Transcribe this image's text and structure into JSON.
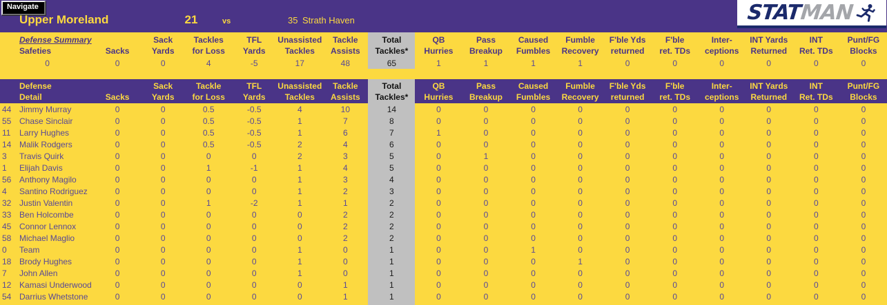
{
  "app": {
    "navigate_label": "Navigate"
  },
  "scoreboard": {
    "home_team": "Upper Moreland",
    "home_score": "21",
    "vs_label": "vs",
    "away_score": "35",
    "away_team": "Strath Haven"
  },
  "logo": {
    "part1": "STAT",
    "part2": "MAN",
    "icon": "runner-icon"
  },
  "colors": {
    "purple": "#4a3487",
    "yellow": "#fcd940",
    "gray_column": "#c0c0c0",
    "data_text": "#584896",
    "logo_navy": "#1b2a6b",
    "logo_silver": "#a4a6aa"
  },
  "summary": {
    "title": "Defense Summary",
    "first_label": "Safeties",
    "first_value": "0",
    "columns": [
      {
        "line1": "",
        "line2": "Sacks",
        "value": "0"
      },
      {
        "line1": "Sack",
        "line2": "Yards",
        "value": "0"
      },
      {
        "line1": "Tackles",
        "line2": "for Loss",
        "value": "4"
      },
      {
        "line1": "TFL",
        "line2": "Yards",
        "value": "-5"
      },
      {
        "line1": "Unassisted",
        "line2": "Tackles",
        "value": "17"
      },
      {
        "line1": "Tackle",
        "line2": "Assists",
        "value": "48"
      },
      {
        "line1": "Total",
        "line2": "Tackles*",
        "value": "65"
      },
      {
        "line1": "QB",
        "line2": "Hurries",
        "value": "1"
      },
      {
        "line1": "Pass",
        "line2": "Breakup",
        "value": "1"
      },
      {
        "line1": "Caused",
        "line2": "Fumbles",
        "value": "1"
      },
      {
        "line1": "Fumble",
        "line2": "Recovery",
        "value": "1"
      },
      {
        "line1": "F'ble Yds",
        "line2": "returned",
        "value": "0"
      },
      {
        "line1": "F'ble",
        "line2": "ret. TDs",
        "value": "0"
      },
      {
        "line1": "Inter-",
        "line2": "ceptions",
        "value": "0"
      },
      {
        "line1": "INT Yards",
        "line2": "Returned",
        "value": "0"
      },
      {
        "line1": "INT",
        "line2": "Ret. TDs",
        "value": "0"
      },
      {
        "line1": "Punt/FG",
        "line2": "Blocks",
        "value": "0"
      }
    ]
  },
  "detail": {
    "header_line1": "Defense",
    "header_line2": "Detail",
    "columns": [
      {
        "line1": "",
        "line2": "Sacks"
      },
      {
        "line1": "Sack",
        "line2": "Yards"
      },
      {
        "line1": "Tackle",
        "line2": "for Loss"
      },
      {
        "line1": "TFL",
        "line2": "Yards"
      },
      {
        "line1": "Unassisted",
        "line2": "Tackles"
      },
      {
        "line1": "Tackle",
        "line2": "Assists"
      },
      {
        "line1": "Total",
        "line2": "Tackles*"
      },
      {
        "line1": "QB",
        "line2": "Hurries"
      },
      {
        "line1": "Pass",
        "line2": "Breakup"
      },
      {
        "line1": "Caused",
        "line2": "Fumbles"
      },
      {
        "line1": "Fumble",
        "line2": "Recovery"
      },
      {
        "line1": "F'ble Yds",
        "line2": "returned"
      },
      {
        "line1": "F'ble",
        "line2": "ret. TDs"
      },
      {
        "line1": "Inter-",
        "line2": "ceptions"
      },
      {
        "line1": "INT Yards",
        "line2": "Returned"
      },
      {
        "line1": "INT",
        "line2": "Ret. TDs"
      },
      {
        "line1": "Punt/FG",
        "line2": "Blocks"
      }
    ],
    "players": [
      {
        "number": "44",
        "name": "Jimmy Murray",
        "stats": [
          "0",
          "0",
          "0.5",
          "-0.5",
          "4",
          "10",
          "14",
          "0",
          "0",
          "0",
          "0",
          "0",
          "0",
          "0",
          "0",
          "0",
          "0"
        ]
      },
      {
        "number": "55",
        "name": "Chase Sinclair",
        "stats": [
          "0",
          "0",
          "0.5",
          "-0.5",
          "1",
          "7",
          "8",
          "0",
          "0",
          "0",
          "0",
          "0",
          "0",
          "0",
          "0",
          "0",
          "0"
        ]
      },
      {
        "number": "11",
        "name": "Larry Hughes",
        "stats": [
          "0",
          "0",
          "0.5",
          "-0.5",
          "1",
          "6",
          "7",
          "1",
          "0",
          "0",
          "0",
          "0",
          "0",
          "0",
          "0",
          "0",
          "0"
        ]
      },
      {
        "number": "14",
        "name": "Malik Rodgers",
        "stats": [
          "0",
          "0",
          "0.5",
          "-0.5",
          "2",
          "4",
          "6",
          "0",
          "0",
          "0",
          "0",
          "0",
          "0",
          "0",
          "0",
          "0",
          "0"
        ]
      },
      {
        "number": "3",
        "name": "Travis Quirk",
        "stats": [
          "0",
          "0",
          "0",
          "0",
          "2",
          "3",
          "5",
          "0",
          "1",
          "0",
          "0",
          "0",
          "0",
          "0",
          "0",
          "0",
          "0"
        ]
      },
      {
        "number": "1",
        "name": "Elijah Davis",
        "stats": [
          "0",
          "0",
          "1",
          "-1",
          "1",
          "4",
          "5",
          "0",
          "0",
          "0",
          "0",
          "0",
          "0",
          "0",
          "0",
          "0",
          "0"
        ]
      },
      {
        "number": "56",
        "name": "Anthony Magilo",
        "stats": [
          "0",
          "0",
          "0",
          "0",
          "1",
          "3",
          "4",
          "0",
          "0",
          "0",
          "0",
          "0",
          "0",
          "0",
          "0",
          "0",
          "0"
        ]
      },
      {
        "number": "4",
        "name": "Santino Rodriguez",
        "stats": [
          "0",
          "0",
          "0",
          "0",
          "1",
          "2",
          "3",
          "0",
          "0",
          "0",
          "0",
          "0",
          "0",
          "0",
          "0",
          "0",
          "0"
        ]
      },
      {
        "number": "32",
        "name": "Justin Valentin",
        "stats": [
          "0",
          "0",
          "1",
          "-2",
          "1",
          "1",
          "2",
          "0",
          "0",
          "0",
          "0",
          "0",
          "0",
          "0",
          "0",
          "0",
          "0"
        ]
      },
      {
        "number": "33",
        "name": "Ben Holcombe",
        "stats": [
          "0",
          "0",
          "0",
          "0",
          "0",
          "2",
          "2",
          "0",
          "0",
          "0",
          "0",
          "0",
          "0",
          "0",
          "0",
          "0",
          "0"
        ]
      },
      {
        "number": "45",
        "name": "Connor Lennox",
        "stats": [
          "0",
          "0",
          "0",
          "0",
          "0",
          "2",
          "2",
          "0",
          "0",
          "0",
          "0",
          "0",
          "0",
          "0",
          "0",
          "0",
          "0"
        ]
      },
      {
        "number": "58",
        "name": "Michael Maglio",
        "stats": [
          "0",
          "0",
          "0",
          "0",
          "0",
          "2",
          "2",
          "0",
          "0",
          "0",
          "0",
          "0",
          "0",
          "0",
          "0",
          "0",
          "0"
        ]
      },
      {
        "number": "0",
        "name": "Team",
        "stats": [
          "0",
          "0",
          "0",
          "0",
          "1",
          "0",
          "1",
          "0",
          "0",
          "1",
          "0",
          "0",
          "0",
          "0",
          "0",
          "0",
          "0"
        ]
      },
      {
        "number": "18",
        "name": "Brody Hughes",
        "stats": [
          "0",
          "0",
          "0",
          "0",
          "1",
          "0",
          "1",
          "0",
          "0",
          "0",
          "1",
          "0",
          "0",
          "0",
          "0",
          "0",
          "0"
        ]
      },
      {
        "number": "7",
        "name": "John Allen",
        "stats": [
          "0",
          "0",
          "0",
          "0",
          "1",
          "0",
          "1",
          "0",
          "0",
          "0",
          "0",
          "0",
          "0",
          "0",
          "0",
          "0",
          "0"
        ]
      },
      {
        "number": "12",
        "name": "Kamasi Underwood",
        "stats": [
          "0",
          "0",
          "0",
          "0",
          "0",
          "1",
          "1",
          "0",
          "0",
          "0",
          "0",
          "0",
          "0",
          "0",
          "0",
          "0",
          "0"
        ]
      },
      {
        "number": "54",
        "name": "Darrius Whetstone",
        "stats": [
          "0",
          "0",
          "0",
          "0",
          "0",
          "1",
          "1",
          "0",
          "0",
          "0",
          "0",
          "0",
          "0",
          "0",
          "0",
          "0",
          "0"
        ]
      }
    ]
  }
}
